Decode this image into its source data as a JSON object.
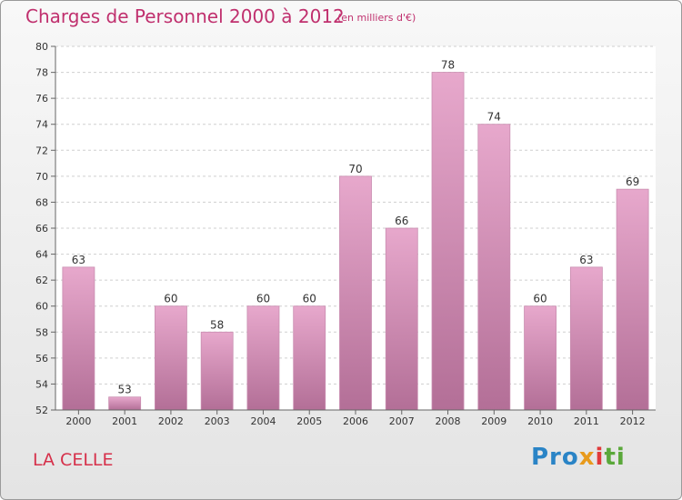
{
  "header": {
    "title": "Charges de Personnel 2000 à 2012",
    "subtitle": "(en milliers d'€)"
  },
  "footer": {
    "commune": "LA CELLE",
    "logo": [
      "Pro",
      "x",
      "i",
      "ti"
    ]
  },
  "colors": {
    "title": "#c0306e",
    "commune": "#d6304a",
    "bar_top": "#e7a8cc",
    "bar_bottom": "#b36f97"
  },
  "chart_data": {
    "type": "bar",
    "categories": [
      "2000",
      "2001",
      "2002",
      "2003",
      "2004",
      "2005",
      "2006",
      "2007",
      "2008",
      "2009",
      "2010",
      "2011",
      "2012"
    ],
    "values": [
      63,
      53,
      60,
      58,
      60,
      60,
      70,
      66,
      78,
      74,
      60,
      63,
      69
    ],
    "ylim": [
      52,
      80
    ],
    "yticks": [
      52,
      54,
      56,
      58,
      60,
      62,
      64,
      66,
      68,
      70,
      72,
      74,
      76,
      78,
      80
    ],
    "grid": true,
    "data_labels": true
  }
}
